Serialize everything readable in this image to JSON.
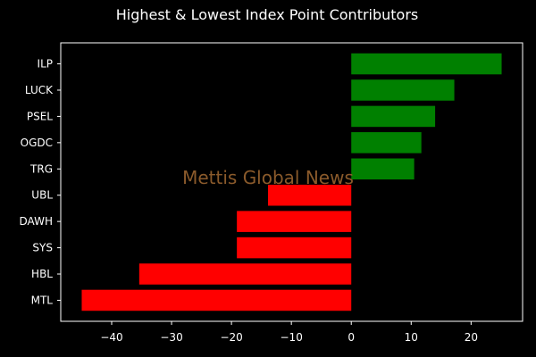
{
  "chart_data": {
    "type": "bar",
    "orientation": "horizontal",
    "title": "Highest & Lowest Index Point Contributors",
    "watermark": "Mettis Global News",
    "categories": [
      "ILP",
      "LUCK",
      "PSEL",
      "OGDC",
      "TRG",
      "UBL",
      "DAWH",
      "SYS",
      "HBL",
      "MTL"
    ],
    "values": [
      25.1,
      17.2,
      14.0,
      11.7,
      10.5,
      -13.9,
      -19.1,
      -19.1,
      -35.4,
      -45.0
    ],
    "bar_colors": [
      "#008000",
      "#008000",
      "#008000",
      "#008000",
      "#008000",
      "#ff0000",
      "#ff0000",
      "#ff0000",
      "#ff0000",
      "#ff0000"
    ],
    "xlim": [
      -48.5,
      28.6
    ],
    "xticks": [
      -40,
      -30,
      -20,
      -10,
      0,
      10,
      20
    ],
    "xtick_labels": [
      "−40",
      "−30",
      "−20",
      "−10",
      "0",
      "10",
      "20"
    ],
    "grid": false,
    "colors": {
      "background": "#000000",
      "axis": "#ffffff",
      "text": "#ffffff",
      "watermark": "#8a5a2b"
    }
  }
}
